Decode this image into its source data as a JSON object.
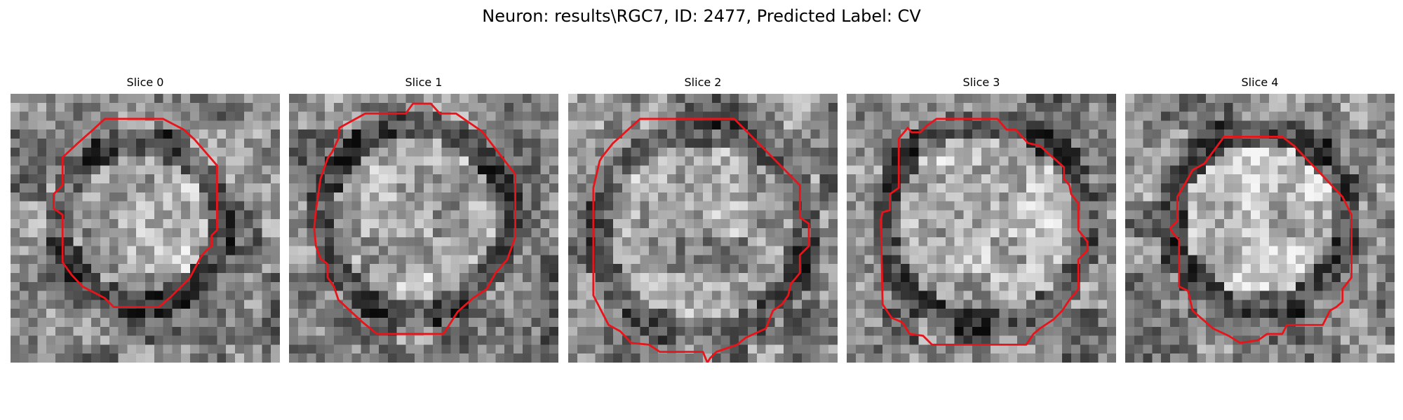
{
  "figure": {
    "title": "Neuron: results\\RGC7, ID: 2477, Predicted Label: CV"
  },
  "grid_size": 30,
  "contour_color": "#e8141a",
  "slices": [
    {
      "title": "Slice 0",
      "seed": 1301,
      "blob": {
        "cx": 14.5,
        "cy": 14.5,
        "r": 8.5,
        "inner": 0.66,
        "ring": 0.3,
        "outer": 0.52
      },
      "contour": [
        [
          10.5,
          2.8
        ],
        [
          17.0,
          2.8
        ],
        [
          19.3,
          4.0
        ],
        [
          20.5,
          5.1
        ],
        [
          23.0,
          8.0
        ],
        [
          23.0,
          15.2
        ],
        [
          22.4,
          15.8
        ],
        [
          22.4,
          17.0
        ],
        [
          21.8,
          17.5
        ],
        [
          21.2,
          18.2
        ],
        [
          20.0,
          20.5
        ],
        [
          17.8,
          22.7
        ],
        [
          16.5,
          23.8
        ],
        [
          11.5,
          23.8
        ],
        [
          10.5,
          22.8
        ],
        [
          8.0,
          21.5
        ],
        [
          6.8,
          20.2
        ],
        [
          5.8,
          18.8
        ],
        [
          5.8,
          13.5
        ],
        [
          4.8,
          12.8
        ],
        [
          4.8,
          11.2
        ],
        [
          5.8,
          10.2
        ],
        [
          5.8,
          7.1
        ],
        [
          7.5,
          5.5
        ],
        [
          9.2,
          4.0
        ]
      ]
    },
    {
      "title": "Slice 1",
      "seed": 2417,
      "blob": {
        "cx": 14.0,
        "cy": 14.0,
        "r": 10.0,
        "inner": 0.66,
        "ring": 0.28,
        "outer": 0.5
      },
      "contour": [
        [
          8.5,
          2.2
        ],
        [
          13.0,
          2.2
        ],
        [
          13.8,
          1.1
        ],
        [
          15.8,
          1.1
        ],
        [
          16.8,
          2.2
        ],
        [
          18.6,
          2.2
        ],
        [
          21.5,
          4.2
        ],
        [
          25.2,
          9.0
        ],
        [
          25.2,
          16.0
        ],
        [
          24.3,
          18.5
        ],
        [
          23.0,
          20.0
        ],
        [
          22.0,
          21.8
        ],
        [
          20.5,
          22.8
        ],
        [
          18.8,
          24.3
        ],
        [
          17.2,
          26.8
        ],
        [
          9.8,
          26.8
        ],
        [
          8.2,
          25.5
        ],
        [
          5.5,
          23.0
        ],
        [
          5.0,
          21.5
        ],
        [
          4.3,
          20.5
        ],
        [
          4.3,
          19.0
        ],
        [
          3.5,
          18.4
        ],
        [
          3.0,
          17.0
        ],
        [
          2.8,
          15.0
        ],
        [
          3.0,
          13.0
        ],
        [
          3.5,
          9.5
        ],
        [
          4.3,
          7.2
        ],
        [
          4.8,
          6.5
        ],
        [
          5.5,
          5.0
        ],
        [
          5.6,
          3.8
        ]
      ]
    },
    {
      "title": "Slice 2",
      "seed": 3571,
      "blob": {
        "cx": 15.0,
        "cy": 15.5,
        "r": 11.0,
        "inner": 0.6,
        "ring": 0.32,
        "outer": 0.52
      },
      "contour": [
        [
          8.0,
          2.8
        ],
        [
          18.5,
          2.8
        ],
        [
          25.8,
          10.2
        ],
        [
          25.8,
          13.8
        ],
        [
          26.8,
          14.5
        ],
        [
          26.8,
          17.0
        ],
        [
          25.8,
          18.0
        ],
        [
          25.8,
          20.0
        ],
        [
          24.8,
          21.2
        ],
        [
          24.5,
          22.5
        ],
        [
          23.8,
          23.5
        ],
        [
          22.8,
          24.2
        ],
        [
          22.0,
          26.2
        ],
        [
          19.8,
          27.2
        ],
        [
          18.8,
          28.0
        ],
        [
          16.5,
          28.8
        ],
        [
          15.8,
          29.5
        ],
        [
          15.5,
          30.0
        ],
        [
          15.0,
          28.8
        ],
        [
          10.2,
          28.8
        ],
        [
          9.0,
          28.0
        ],
        [
          7.0,
          27.8
        ],
        [
          5.8,
          26.5
        ],
        [
          4.5,
          25.8
        ],
        [
          2.8,
          22.5
        ],
        [
          2.8,
          10.5
        ],
        [
          3.5,
          7.5
        ],
        [
          3.8,
          7.0
        ],
        [
          5.0,
          5.5
        ]
      ]
    },
    {
      "title": "Slice 3",
      "seed": 4603,
      "blob": {
        "cx": 15.5,
        "cy": 14.5,
        "r": 11.0,
        "inner": 0.66,
        "ring": 0.26,
        "outer": 0.5
      },
      "contour": [
        [
          10.0,
          2.8
        ],
        [
          16.8,
          2.8
        ],
        [
          17.8,
          4.0
        ],
        [
          18.8,
          4.0
        ],
        [
          20.2,
          5.5
        ],
        [
          21.5,
          5.8
        ],
        [
          24.2,
          8.2
        ],
        [
          24.2,
          9.5
        ],
        [
          24.8,
          10.2
        ],
        [
          25.0,
          11.2
        ],
        [
          25.8,
          12.2
        ],
        [
          25.8,
          15.2
        ],
        [
          26.8,
          16.5
        ],
        [
          26.8,
          17.5
        ],
        [
          25.8,
          18.5
        ],
        [
          25.8,
          21.8
        ],
        [
          24.8,
          23.0
        ],
        [
          24.0,
          24.2
        ],
        [
          23.0,
          25.2
        ],
        [
          21.5,
          26.2
        ],
        [
          20.8,
          26.8
        ],
        [
          20.0,
          28.0
        ],
        [
          9.5,
          28.0
        ],
        [
          8.5,
          27.0
        ],
        [
          7.0,
          26.8
        ],
        [
          6.2,
          25.5
        ],
        [
          5.0,
          25.0
        ],
        [
          4.0,
          23.5
        ],
        [
          3.8,
          14.0
        ],
        [
          4.0,
          13.2
        ],
        [
          4.8,
          13.0
        ],
        [
          4.8,
          11.2
        ],
        [
          5.8,
          10.5
        ],
        [
          5.8,
          5.0
        ],
        [
          6.8,
          3.8
        ],
        [
          7.2,
          4.3
        ],
        [
          8.2,
          4.3
        ],
        [
          9.0,
          3.5
        ]
      ]
    },
    {
      "title": "Slice 4",
      "seed": 5779,
      "blob": {
        "cx": 15.0,
        "cy": 14.0,
        "r": 9.5,
        "inner": 0.74,
        "ring": 0.28,
        "outer": 0.54
      },
      "contour": [
        [
          11.0,
          4.8
        ],
        [
          17.5,
          4.8
        ],
        [
          18.8,
          5.8
        ],
        [
          22.8,
          10.0
        ],
        [
          24.2,
          11.5
        ],
        [
          25.2,
          13.5
        ],
        [
          25.2,
          20.5
        ],
        [
          24.2,
          21.8
        ],
        [
          24.2,
          23.2
        ],
        [
          23.5,
          23.8
        ],
        [
          22.8,
          24.2
        ],
        [
          22.0,
          25.8
        ],
        [
          18.0,
          25.8
        ],
        [
          17.5,
          26.8
        ],
        [
          15.8,
          26.8
        ],
        [
          14.8,
          27.5
        ],
        [
          12.8,
          27.8
        ],
        [
          11.5,
          27.0
        ],
        [
          9.8,
          26.2
        ],
        [
          7.5,
          24.2
        ],
        [
          7.0,
          22.0
        ],
        [
          6.0,
          21.5
        ],
        [
          6.0,
          16.3
        ],
        [
          5.5,
          15.8
        ],
        [
          5.0,
          15.0
        ],
        [
          5.8,
          14.2
        ],
        [
          5.8,
          11.5
        ],
        [
          6.8,
          9.8
        ],
        [
          7.5,
          8.5
        ],
        [
          8.8,
          7.8
        ]
      ]
    }
  ]
}
